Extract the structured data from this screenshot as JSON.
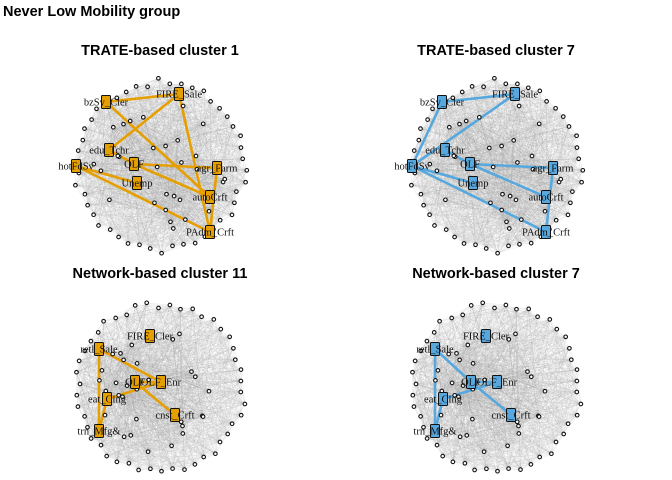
{
  "figure": {
    "title": "Never Low Mobility group"
  },
  "colors": {
    "orange": "#E69F00",
    "blue": "#56A8DE"
  },
  "panels": [
    {
      "title": "TRATE-based cluster 1",
      "color": "#E69F00",
      "highlight_nodes": [
        {
          "label": "FIRE_Sale"
        },
        {
          "label": "bzSv_Cler"
        },
        {
          "label": "eduSv_Tchr"
        },
        {
          "label": "OLF"
        },
        {
          "label": "hotFdSv"
        },
        {
          "label": "agrFarm"
        },
        {
          "label": "Unemp"
        },
        {
          "label": "autoCrft"
        },
        {
          "label": "PAdmCrft"
        }
      ],
      "highlight_text": [
        "FIRE_Sale",
        "bzSv_Cler",
        "edu_Tchr",
        "OLF",
        "hotFdSv",
        "agr_Farm",
        "Unemp",
        "autoCrft",
        "PAdm_Crft"
      ],
      "edges": [
        [
          0,
          1
        ],
        [
          0,
          2
        ],
        [
          0,
          8
        ],
        [
          2,
          3
        ],
        [
          3,
          5
        ],
        [
          3,
          7
        ],
        [
          4,
          6
        ],
        [
          4,
          8
        ],
        [
          5,
          8
        ],
        [
          1,
          7
        ]
      ]
    },
    {
      "title": "TRATE-based cluster 7",
      "color": "#56A8DE",
      "highlight_nodes": [
        {
          "label": "FIRE_Sale"
        },
        {
          "label": "bzSv_Cler"
        },
        {
          "label": "eduSv_Tchr"
        },
        {
          "label": "OLF"
        },
        {
          "label": "hotFdSv"
        },
        {
          "label": "agrFarm"
        },
        {
          "label": "Unemp"
        },
        {
          "label": "autoCrft"
        },
        {
          "label": "PAdmCrft"
        }
      ],
      "highlight_text": [
        "FIRE_Sale",
        "bzSv_Cler",
        "edu_Tchr",
        "OLF",
        "hotFdSv",
        "agr_Farm",
        "Unemp",
        "autoCrft",
        "PAdm_Crft"
      ],
      "edges": [
        [
          0,
          1
        ],
        [
          0,
          4
        ],
        [
          2,
          3
        ],
        [
          3,
          5
        ],
        [
          3,
          7
        ],
        [
          4,
          6
        ],
        [
          4,
          8
        ],
        [
          5,
          8
        ],
        [
          1,
          4
        ]
      ]
    },
    {
      "title": "Network-based cluster 11",
      "color": "#E69F00",
      "highlight_nodes": [
        {
          "label": "FIRE_Cler"
        },
        {
          "label": "retl_Sale"
        },
        {
          "label": "OLF"
        },
        {
          "label": "OLF_Enr"
        },
        {
          "label": "eat_Clng"
        },
        {
          "label": "cnstCrft"
        },
        {
          "label": "trn_Mfg"
        }
      ],
      "highlight_text": [
        "FIRE_Cler",
        "retl_Sale",
        "OLF",
        "OLF_Enr",
        "eat_Clng",
        "cnst_Crft",
        "trn_Mfg&"
      ],
      "edges": [
        [
          1,
          3
        ],
        [
          1,
          6
        ],
        [
          2,
          5
        ],
        [
          3,
          4
        ],
        [
          4,
          6
        ],
        [
          2,
          3
        ]
      ]
    },
    {
      "title": "Network-based cluster 7",
      "color": "#56A8DE",
      "highlight_nodes": [
        {
          "label": "FIRE_Cler"
        },
        {
          "label": "retl_Sale"
        },
        {
          "label": "OLF"
        },
        {
          "label": "OLF_Enr"
        },
        {
          "label": "eat_Clng"
        },
        {
          "label": "cnstCrft"
        },
        {
          "label": "trn_Mfg"
        }
      ],
      "highlight_text": [
        "FIRE_Cler",
        "retl_Sale",
        "OLF",
        "OLF_Enr",
        "eat_Clng",
        "cnst_Crft",
        "trn_Mfg&"
      ],
      "edges": [
        [
          1,
          2
        ],
        [
          1,
          6
        ],
        [
          2,
          5
        ],
        [
          3,
          4
        ],
        [
          4,
          6
        ],
        [
          2,
          3
        ]
      ]
    }
  ]
}
